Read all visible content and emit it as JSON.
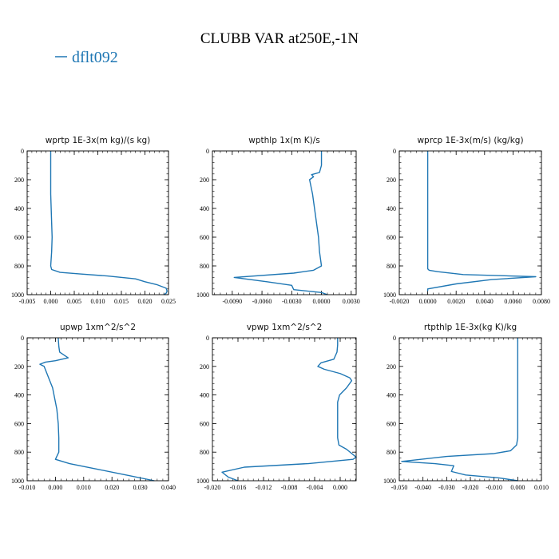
{
  "title": "CLUBB VAR at250E,-1N",
  "legend": [
    {
      "label": "dflt092",
      "color": "#1f77b4"
    }
  ],
  "chart_data": [
    {
      "type": "line",
      "title": "wprtp  1E-3x(m kg)/(s kg)",
      "xlim": [
        -0.005,
        0.025
      ],
      "ylim": [
        1000,
        0
      ],
      "xticks": [
        -0.005,
        0.0,
        0.005,
        0.01,
        0.015,
        0.02,
        0.025
      ],
      "xtick_labels": [
        "-0.005",
        "0.000",
        "0.005",
        "0.010",
        "0.015",
        "0.020",
        "0.025"
      ],
      "yticks": [
        0,
        200,
        400,
        600,
        800,
        1000
      ],
      "ytick_labels": [
        "0",
        "200",
        "400",
        "600",
        "800",
        "1000"
      ],
      "series": [
        {
          "name": "dflt092",
          "color": "#1f77b4",
          "x": [
            0.0,
            0.0,
            0.0,
            0.0,
            0.0001,
            0.0002,
            0.0003,
            0.0002,
            0.0,
            0.0002,
            0.002,
            0.006,
            0.012,
            0.018,
            0.02,
            0.0225,
            0.0245,
            0.0247,
            0.0245,
            0.024
          ],
          "y": [
            0,
            100,
            200,
            300,
            400,
            500,
            600,
            700,
            800,
            825,
            845,
            855,
            870,
            890,
            910,
            930,
            955,
            975,
            990,
            1000
          ]
        }
      ]
    },
    {
      "type": "line",
      "title": "wpthlp  1x(m K)/s",
      "xlim": [
        -0.011,
        0.0035
      ],
      "ylim": [
        1000,
        0
      ],
      "xticks": [
        -0.009,
        -0.006,
        -0.003,
        0.0,
        0.003
      ],
      "xtick_labels": [
        "-0.0090",
        "-0.0060",
        "-0.0030",
        "0.0000",
        "0.0030"
      ],
      "yticks": [
        0,
        200,
        400,
        600,
        800,
        1000
      ],
      "ytick_labels": [
        "0",
        "200",
        "400",
        "600",
        "800",
        "1000"
      ],
      "series": [
        {
          "name": "dflt092",
          "color": "#1f77b4",
          "x": [
            0.0,
            0.0,
            -0.0002,
            -0.001,
            -0.0008,
            -0.0012,
            -0.0009,
            -0.0007,
            -0.0005,
            -0.0003,
            -0.0002,
            0.0,
            -0.0008,
            -0.0028,
            -0.0088,
            -0.0055,
            -0.003,
            -0.0028,
            0.0,
            0.0006
          ],
          "y": [
            0,
            100,
            150,
            165,
            180,
            200,
            300,
            400,
            500,
            600,
            700,
            800,
            830,
            850,
            880,
            910,
            935,
            965,
            985,
            1000
          ]
        }
      ]
    },
    {
      "type": "line",
      "title": "wprcp  1E-3x(m/s) (kg/kg)",
      "xlim": [
        -0.002,
        0.008
      ],
      "ylim": [
        1000,
        0
      ],
      "xticks": [
        -0.002,
        0.0,
        0.002,
        0.004,
        0.006,
        0.008
      ],
      "xtick_labels": [
        "-0.0020",
        "0.0000",
        "0.0020",
        "0.0040",
        "0.0060",
        "0.0080"
      ],
      "yticks": [
        0,
        200,
        400,
        600,
        800,
        1000
      ],
      "ytick_labels": [
        "0",
        "200",
        "400",
        "600",
        "800",
        "1000"
      ],
      "series": [
        {
          "name": "dflt092",
          "color": "#1f77b4",
          "x": [
            0.0,
            0.0,
            0.0,
            0.0,
            0.0,
            0.0,
            0.0,
            0.0001,
            0.0007,
            0.0025,
            0.0076,
            0.0045,
            0.002,
            0.0,
            0.0
          ],
          "y": [
            0,
            200,
            400,
            600,
            700,
            800,
            820,
            830,
            840,
            860,
            875,
            895,
            925,
            960,
            975
          ]
        }
      ]
    },
    {
      "type": "line",
      "title": "upwp  1xm^2/s^2",
      "xlim": [
        -0.01,
        0.04
      ],
      "ylim": [
        1000,
        0
      ],
      "xticks": [
        -0.01,
        0.0,
        0.01,
        0.02,
        0.03,
        0.04
      ],
      "xtick_labels": [
        "-0.010",
        "0.000",
        "0.010",
        "0.020",
        "0.030",
        "0.040"
      ],
      "yticks": [
        0,
        200,
        400,
        600,
        800,
        1000
      ],
      "ytick_labels": [
        "0",
        "200",
        "400",
        "600",
        "800",
        "1000"
      ],
      "series": [
        {
          "name": "dflt092",
          "color": "#1f77b4",
          "x": [
            0.001,
            0.0012,
            0.0015,
            0.0045,
            0.0,
            -0.0035,
            -0.0055,
            -0.004,
            -0.003,
            -0.002,
            -0.001,
            -0.0005,
            0.0,
            0.0005,
            0.001,
            0.0012,
            0.0012,
            0.0,
            0.005,
            0.015,
            0.025,
            0.035
          ],
          "y": [
            0,
            60,
            100,
            140,
            160,
            170,
            185,
            200,
            250,
            300,
            350,
            400,
            450,
            500,
            600,
            700,
            800,
            850,
            880,
            920,
            960,
            1000
          ]
        }
      ]
    },
    {
      "type": "line",
      "title": "vpwp  1xm^2/s^2",
      "xlim": [
        -0.02,
        0.0025
      ],
      "ylim": [
        1000,
        0
      ],
      "xticks": [
        -0.02,
        -0.016,
        -0.012,
        -0.008,
        -0.004,
        0.0
      ],
      "xtick_labels": [
        "-0.020",
        "-0.016",
        "-0.012",
        "-0.008",
        "-0.004",
        "0.000"
      ],
      "yticks": [
        0,
        200,
        400,
        600,
        800,
        1000
      ],
      "ytick_labels": [
        "0",
        "200",
        "400",
        "600",
        "800",
        "1000"
      ],
      "series": [
        {
          "name": "dflt092",
          "color": "#1f77b4",
          "x": [
            -0.0004,
            -0.0004,
            -0.0005,
            -0.001,
            -0.003,
            -0.0035,
            -0.0025,
            0.0,
            0.0015,
            0.0018,
            0.001,
            -0.0001,
            -0.0004,
            -0.0004,
            -0.0004,
            -0.0004,
            -0.0002,
            0.001,
            0.0025,
            0.002,
            -0.005,
            -0.015,
            -0.0185,
            -0.0175,
            -0.016
          ],
          "y": [
            0,
            50,
            100,
            150,
            175,
            200,
            220,
            250,
            280,
            300,
            350,
            400,
            450,
            500,
            600,
            700,
            750,
            780,
            835,
            850,
            880,
            905,
            940,
            975,
            1000
          ]
        }
      ]
    },
    {
      "type": "line",
      "title": "rtpthlp  1E-3x(kg K)/kg",
      "xlim": [
        -0.05,
        0.01
      ],
      "ylim": [
        1000,
        0
      ],
      "xticks": [
        -0.05,
        -0.04,
        -0.03,
        -0.02,
        -0.01,
        0.0,
        0.01
      ],
      "xtick_labels": [
        "-0.050",
        "-0.040",
        "-0.030",
        "-0.020",
        "-0.010",
        "0.000",
        "0.010"
      ],
      "yticks": [
        0,
        200,
        400,
        600,
        800,
        1000
      ],
      "ytick_labels": [
        "0",
        "200",
        "400",
        "600",
        "800",
        "1000"
      ],
      "series": [
        {
          "name": "dflt092",
          "color": "#1f77b4",
          "x": [
            0.0,
            0.0,
            0.0,
            0.0,
            0.0,
            -0.0005,
            -0.003,
            -0.01,
            -0.03,
            -0.049,
            -0.035,
            -0.027,
            -0.028,
            -0.022,
            -0.008,
            -0.002,
            0.0
          ],
          "y": [
            0,
            200,
            400,
            600,
            700,
            750,
            790,
            810,
            830,
            865,
            880,
            895,
            935,
            960,
            980,
            995,
            1000
          ]
        }
      ]
    }
  ]
}
